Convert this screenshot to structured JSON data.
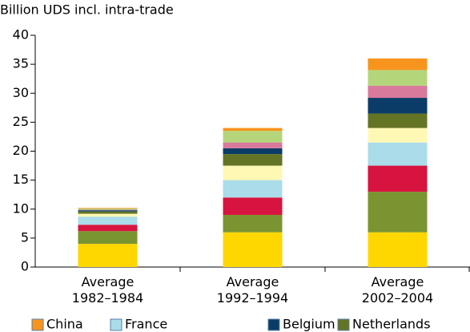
{
  "chart_data": {
    "type": "stacked_bar",
    "title": "Billion UDS incl. intra-trade",
    "categories": [
      "Average\n1982–1984",
      "Average\n1992–1994",
      "Average\n2002–2004"
    ],
    "series": [
      {
        "color": "#ffd700",
        "values": [
          4,
          6,
          6
        ]
      },
      {
        "color": "#7b9432",
        "values": [
          2.2,
          3,
          7
        ]
      },
      {
        "color": "#d7143f",
        "values": [
          1.1,
          3,
          4.5
        ]
      },
      {
        "name": "France",
        "color": "#aadcea",
        "values": [
          1.4,
          3,
          4
        ]
      },
      {
        "color": "#fff8b4",
        "values": [
          0.5,
          2.5,
          2.5
        ]
      },
      {
        "name": "Netherlands",
        "color": "#637424",
        "values": [
          0.4,
          2,
          2.5
        ]
      },
      {
        "name": "Belgium",
        "color": "#0b3c68",
        "values": [
          0.2,
          1,
          2.7
        ]
      },
      {
        "color": "#d9799b",
        "values": [
          0.1,
          1,
          2.1
        ]
      },
      {
        "color": "#b4d57a",
        "values": [
          0.2,
          2,
          2.7
        ]
      },
      {
        "name": "China",
        "color": "#f7941d",
        "values": [
          0.1,
          0.5,
          2
        ]
      }
    ],
    "ylim": [
      0,
      40
    ],
    "yticks": [
      0,
      5,
      10,
      15,
      20,
      25,
      30,
      35,
      40
    ]
  }
}
